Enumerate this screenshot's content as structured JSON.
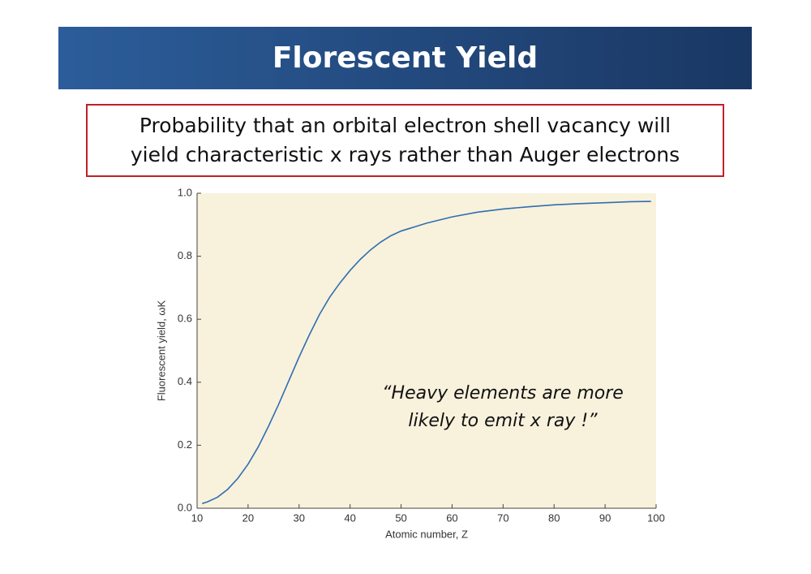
{
  "slide": {
    "title": "Florescent Yield",
    "description": [
      "Probability that an orbital electron shell vacancy will",
      "yield characteristic x rays rather than Auger electrons"
    ]
  },
  "chart_data": {
    "type": "line",
    "xlabel": "Atomic number, Z",
    "ylabel": "Fluorescent yield, ωK",
    "annotation": [
      "“Heavy elements are more",
      "likely to emit x ray !”"
    ],
    "x": [
      11,
      12,
      14,
      16,
      18,
      20,
      22,
      24,
      26,
      28,
      30,
      32,
      34,
      36,
      38,
      40,
      42,
      44,
      46,
      48,
      50,
      55,
      60,
      65,
      70,
      75,
      80,
      85,
      90,
      95,
      99
    ],
    "series": [
      {
        "color": "#2f6fb0",
        "values": [
          0.015,
          0.02,
          0.035,
          0.06,
          0.095,
          0.14,
          0.195,
          0.26,
          0.33,
          0.405,
          0.48,
          0.55,
          0.615,
          0.67,
          0.715,
          0.755,
          0.79,
          0.82,
          0.845,
          0.865,
          0.88,
          0.905,
          0.925,
          0.94,
          0.95,
          0.957,
          0.963,
          0.967,
          0.97,
          0.973,
          0.974
        ]
      }
    ],
    "xlim": [
      10,
      100
    ],
    "ylim": [
      0,
      1
    ],
    "xticks": [
      10,
      20,
      30,
      40,
      50,
      60,
      70,
      80,
      90,
      100
    ],
    "yticks": [
      {
        "value": 0,
        "label": "0.0"
      },
      0.2,
      0.4,
      0.6,
      0.8,
      {
        "value": 1,
        "label": "1.0"
      }
    ],
    "background": "#f8f1dc"
  }
}
